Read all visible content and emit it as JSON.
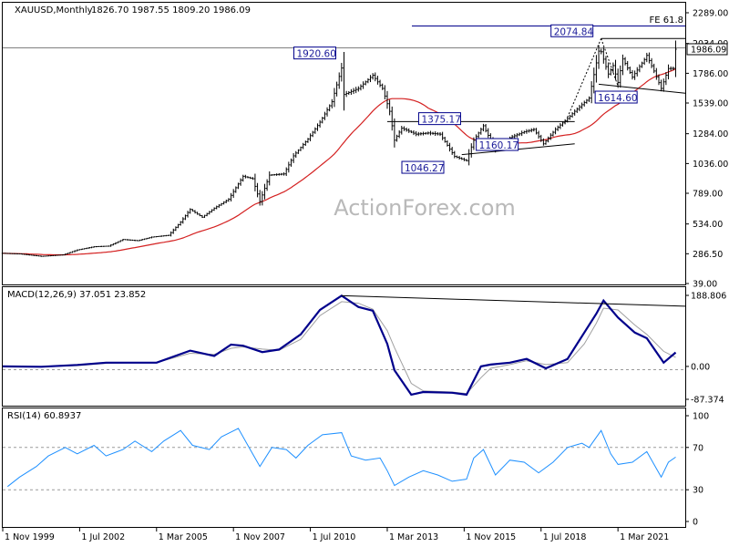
{
  "header": {
    "symbol": "XAUUSD,Monthly",
    "ohlc": "1826.70 1987.55 1809.20 1986.09"
  },
  "watermark": "ActionForex.com",
  "colors": {
    "price": "#000000",
    "ma": "#d42121",
    "macd": "#00008b",
    "signal": "#a0a0a0",
    "rsi": "#1e90ff",
    "box_border": "#00008b",
    "box_text": "#1a1a99",
    "trendline": "#000000",
    "level": "#808080"
  },
  "chart_data": [
    {
      "type": "candlestick",
      "panel": "price",
      "x_ticks": [
        "1 Nov 1999",
        "1 Jul 2002",
        "1 Mar 2005",
        "1 Nov 2007",
        "1 Jul 2010",
        "1 Mar 2013",
        "1 Nov 2015",
        "1 Jul 2018",
        "1 Mar 2021"
      ],
      "y_ticks": [
        "2289.00",
        "2034.00",
        "1786.00",
        "1539.00",
        "1284.00",
        "1036.00",
        "789.00",
        "534.00",
        "286.50",
        "39.00"
      ],
      "ylim": [
        39,
        2289
      ],
      "last_price_label": "1986.09",
      "level_label": "FE 61.8",
      "level_value": 2260,
      "close_series": [
        [
          "1999-11",
          290
        ],
        [
          "2000-06",
          285
        ],
        [
          "2001-03",
          265
        ],
        [
          "2001-12",
          277
        ],
        [
          "2002-06",
          318
        ],
        [
          "2003-01",
          345
        ],
        [
          "2003-07",
          350
        ],
        [
          "2004-01",
          405
        ],
        [
          "2004-07",
          395
        ],
        [
          "2005-01",
          425
        ],
        [
          "2005-08",
          440
        ],
        [
          "2006-01",
          550
        ],
        [
          "2006-05",
          655
        ],
        [
          "2006-10",
          590
        ],
        [
          "2007-03",
          665
        ],
        [
          "2007-09",
          740
        ],
        [
          "2008-03",
          930
        ],
        [
          "2008-07",
          910
        ],
        [
          "2008-10",
          720
        ],
        [
          "2009-02",
          940
        ],
        [
          "2009-08",
          950
        ],
        [
          "2009-12",
          1100
        ],
        [
          "2010-06",
          1240
        ],
        [
          "2010-11",
          1380
        ],
        [
          "2011-04",
          1550
        ],
        [
          "2011-08",
          1830
        ],
        [
          "2011-09",
          1610
        ],
        [
          "2012-03",
          1660
        ],
        [
          "2012-09",
          1770
        ],
        [
          "2013-01",
          1660
        ],
        [
          "2013-04",
          1470
        ],
        [
          "2013-06",
          1230
        ],
        [
          "2013-09",
          1330
        ],
        [
          "2014-03",
          1280
        ],
        [
          "2014-08",
          1290
        ],
        [
          "2015-01",
          1280
        ],
        [
          "2015-07",
          1095
        ],
        [
          "2015-12",
          1060
        ],
        [
          "2016-03",
          1230
        ],
        [
          "2016-07",
          1350
        ],
        [
          "2016-12",
          1150
        ],
        [
          "2017-06",
          1250
        ],
        [
          "2017-12",
          1300
        ],
        [
          "2018-04",
          1320
        ],
        [
          "2018-08",
          1200
        ],
        [
          "2019-01",
          1320
        ],
        [
          "2019-06",
          1410
        ],
        [
          "2019-09",
          1470
        ],
        [
          "2020-03",
          1580
        ],
        [
          "2020-07",
          1970
        ],
        [
          "2020-08",
          1965
        ],
        [
          "2020-11",
          1780
        ],
        [
          "2021-01",
          1850
        ],
        [
          "2021-03",
          1710
        ],
        [
          "2021-05",
          1905
        ],
        [
          "2021-09",
          1755
        ],
        [
          "2022-02",
          1900
        ],
        [
          "2022-03",
          1935
        ],
        [
          "2022-06",
          1805
        ],
        [
          "2022-09",
          1660
        ],
        [
          "2022-12",
          1825
        ],
        [
          "2023-02",
          1826.7
        ],
        [
          "2023-03",
          1986.09
        ]
      ],
      "annotations": [
        {
          "text": "2074.84",
          "date": "2020-08",
          "value": 2074.84
        },
        {
          "text": "1920.60",
          "date": "2011-09",
          "value": 1920.6
        },
        {
          "text": "1375.17",
          "date": "2016-07",
          "value": 1375.17
        },
        {
          "text": "1046.27",
          "date": "2015-12",
          "value": 1046.27
        },
        {
          "text": "1160.17",
          "date": "2016-12",
          "value": 1160.17
        },
        {
          "text": "1614.60",
          "date": "2021-03",
          "value": 1614.6
        }
      ],
      "trendlines": [
        {
          "from": [
            "2013-03",
            1385
          ],
          "to": [
            "2019-09",
            1385
          ]
        },
        {
          "from": [
            "2015-10",
            1110
          ],
          "to": [
            "2019-09",
            1200
          ]
        },
        {
          "from": [
            "2020-08",
            2075
          ],
          "to": [
            "2023-07",
            2075
          ]
        },
        {
          "from": [
            "2020-07",
            1695
          ],
          "to": [
            "2023-07",
            1620
          ]
        }
      ]
    },
    {
      "type": "line",
      "panel": "macd",
      "title": "MACD(12,26,9) 37.051 23.852",
      "y_ticks": [
        "188.806",
        "0.00",
        "-87.374"
      ],
      "ylim": [
        -87.374,
        188.806
      ],
      "series": [
        {
          "values": [
            [
              "1999-11",
              0
            ],
            [
              "2001-03",
              -1
            ],
            [
              "2002-06",
              4
            ],
            [
              "2003-06",
              10
            ],
            [
              "2004-06",
              10
            ],
            [
              "2005-03",
              10
            ],
            [
              "2006-05",
              42
            ],
            [
              "2007-03",
              28
            ],
            [
              "2007-10",
              58
            ],
            [
              "2008-03",
              55
            ],
            [
              "2008-11",
              38
            ],
            [
              "2009-06",
              45
            ],
            [
              "2010-03",
              85
            ],
            [
              "2010-11",
              150
            ],
            [
              "2011-08",
              188
            ],
            [
              "2012-03",
              158
            ],
            [
              "2012-09",
              148
            ],
            [
              "2013-03",
              60
            ],
            [
              "2013-06",
              -10
            ],
            [
              "2014-01",
              -75
            ],
            [
              "2014-06",
              -68
            ],
            [
              "2015-06",
              -70
            ],
            [
              "2015-12",
              -75
            ],
            [
              "2016-06",
              0
            ],
            [
              "2016-10",
              5
            ],
            [
              "2017-06",
              10
            ],
            [
              "2018-01",
              20
            ],
            [
              "2018-09",
              -5
            ],
            [
              "2019-06",
              20
            ],
            [
              "2020-01",
              90
            ],
            [
              "2020-06",
              140
            ],
            [
              "2020-09",
              175
            ],
            [
              "2021-03",
              130
            ],
            [
              "2021-10",
              90
            ],
            [
              "2022-03",
              75
            ],
            [
              "2022-10",
              10
            ],
            [
              "2023-03",
              37.051
            ]
          ]
        },
        {
          "values": [
            [
              "1999-11",
              0
            ],
            [
              "2001-03",
              -1
            ],
            [
              "2002-06",
              2
            ],
            [
              "2003-06",
              8
            ],
            [
              "2004-06",
              10
            ],
            [
              "2005-03",
              10
            ],
            [
              "2006-05",
              35
            ],
            [
              "2007-03",
              32
            ],
            [
              "2007-10",
              48
            ],
            [
              "2008-03",
              52
            ],
            [
              "2008-11",
              46
            ],
            [
              "2009-06",
              43
            ],
            [
              "2010-03",
              72
            ],
            [
              "2010-11",
              135
            ],
            [
              "2011-08",
              172
            ],
            [
              "2012-03",
              168
            ],
            [
              "2012-09",
              152
            ],
            [
              "2013-03",
              95
            ],
            [
              "2013-06",
              50
            ],
            [
              "2014-01",
              -45
            ],
            [
              "2014-06",
              -65
            ],
            [
              "2015-06",
              -68
            ],
            [
              "2015-12",
              -72
            ],
            [
              "2016-06",
              -30
            ],
            [
              "2016-10",
              -5
            ],
            [
              "2017-06",
              5
            ],
            [
              "2018-01",
              15
            ],
            [
              "2018-09",
              5
            ],
            [
              "2019-06",
              10
            ],
            [
              "2020-01",
              60
            ],
            [
              "2020-06",
              115
            ],
            [
              "2020-09",
              155
            ],
            [
              "2021-03",
              150
            ],
            [
              "2021-10",
              110
            ],
            [
              "2022-03",
              85
            ],
            [
              "2022-10",
              40
            ],
            [
              "2023-03",
              23.852
            ]
          ]
        }
      ],
      "trendline": {
        "from": [
          "2011-08",
          188
        ],
        "to": [
          "2023-07",
          160
        ]
      }
    },
    {
      "type": "line",
      "panel": "rsi",
      "title": "RSI(14) 60.8937",
      "y_ticks": [
        "100",
        "70",
        "30",
        "0"
      ],
      "ylim": [
        0,
        100
      ],
      "levels": [
        70,
        30
      ],
      "series": [
        {
          "values": [
            [
              "2000-01",
              33
            ],
            [
              "2000-06",
              42
            ],
            [
              "2001-01",
              52
            ],
            [
              "2001-06",
              62
            ],
            [
              "2002-01",
              70
            ],
            [
              "2002-06",
              64
            ],
            [
              "2003-01",
              72
            ],
            [
              "2003-06",
              62
            ],
            [
              "2004-01",
              68
            ],
            [
              "2004-06",
              76
            ],
            [
              "2005-01",
              66
            ],
            [
              "2005-06",
              76
            ],
            [
              "2006-01",
              86
            ],
            [
              "2006-06",
              72
            ],
            [
              "2007-01",
              68
            ],
            [
              "2007-06",
              80
            ],
            [
              "2008-01",
              88
            ],
            [
              "2008-06",
              68
            ],
            [
              "2008-10",
              52
            ],
            [
              "2009-03",
              70
            ],
            [
              "2009-09",
              68
            ],
            [
              "2010-01",
              60
            ],
            [
              "2010-06",
              72
            ],
            [
              "2010-12",
              82
            ],
            [
              "2011-08",
              84
            ],
            [
              "2011-12",
              62
            ],
            [
              "2012-06",
              58
            ],
            [
              "2012-12",
              60
            ],
            [
              "2013-03",
              48
            ],
            [
              "2013-06",
              34
            ],
            [
              "2013-12",
              42
            ],
            [
              "2014-06",
              48
            ],
            [
              "2014-12",
              44
            ],
            [
              "2015-06",
              38
            ],
            [
              "2015-12",
              40
            ],
            [
              "2016-03",
              60
            ],
            [
              "2016-07",
              68
            ],
            [
              "2016-12",
              44
            ],
            [
              "2017-06",
              58
            ],
            [
              "2017-12",
              56
            ],
            [
              "2018-06",
              46
            ],
            [
              "2018-12",
              56
            ],
            [
              "2019-06",
              70
            ],
            [
              "2019-12",
              74
            ],
            [
              "2020-03",
              70
            ],
            [
              "2020-08",
              86
            ],
            [
              "2020-12",
              64
            ],
            [
              "2021-03",
              54
            ],
            [
              "2021-09",
              56
            ],
            [
              "2022-03",
              66
            ],
            [
              "2022-09",
              42
            ],
            [
              "2022-12",
              56
            ],
            [
              "2023-03",
              60.8937
            ]
          ]
        }
      ]
    }
  ]
}
